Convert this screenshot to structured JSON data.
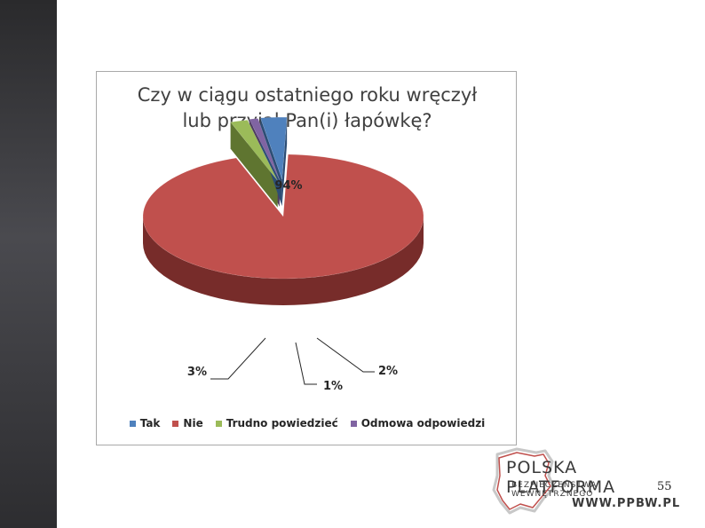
{
  "chart_data": {
    "type": "pie",
    "title_lines": [
      "Czy w ciągu ostatniego roku wręczył",
      "lub przyjął Pan(i) łapówkę?"
    ],
    "categories": [
      "Tak",
      "Nie",
      "Trudno powiedzieć",
      "Odmowa odpowiedzi"
    ],
    "values": [
      3,
      94,
      2,
      1
    ],
    "data_labels": [
      "3%",
      "94%",
      "2%",
      "1%"
    ],
    "colors": [
      "#4f81bd",
      "#c0504d",
      "#9bbb59",
      "#8064a2"
    ],
    "dark_colors": [
      "#2c4d75",
      "#772c2a",
      "#5f7530",
      "#4d3b62"
    ],
    "legend_placement": "bottom",
    "three_d": true
  },
  "logo": {
    "line1": "POLSKA PLATFORMA",
    "line2": "BEZPIECZEŃSTWA WEWNĘTRZNEGO",
    "line3": "WWW.PPBW.PL"
  },
  "slide": {
    "page_number": "55"
  }
}
